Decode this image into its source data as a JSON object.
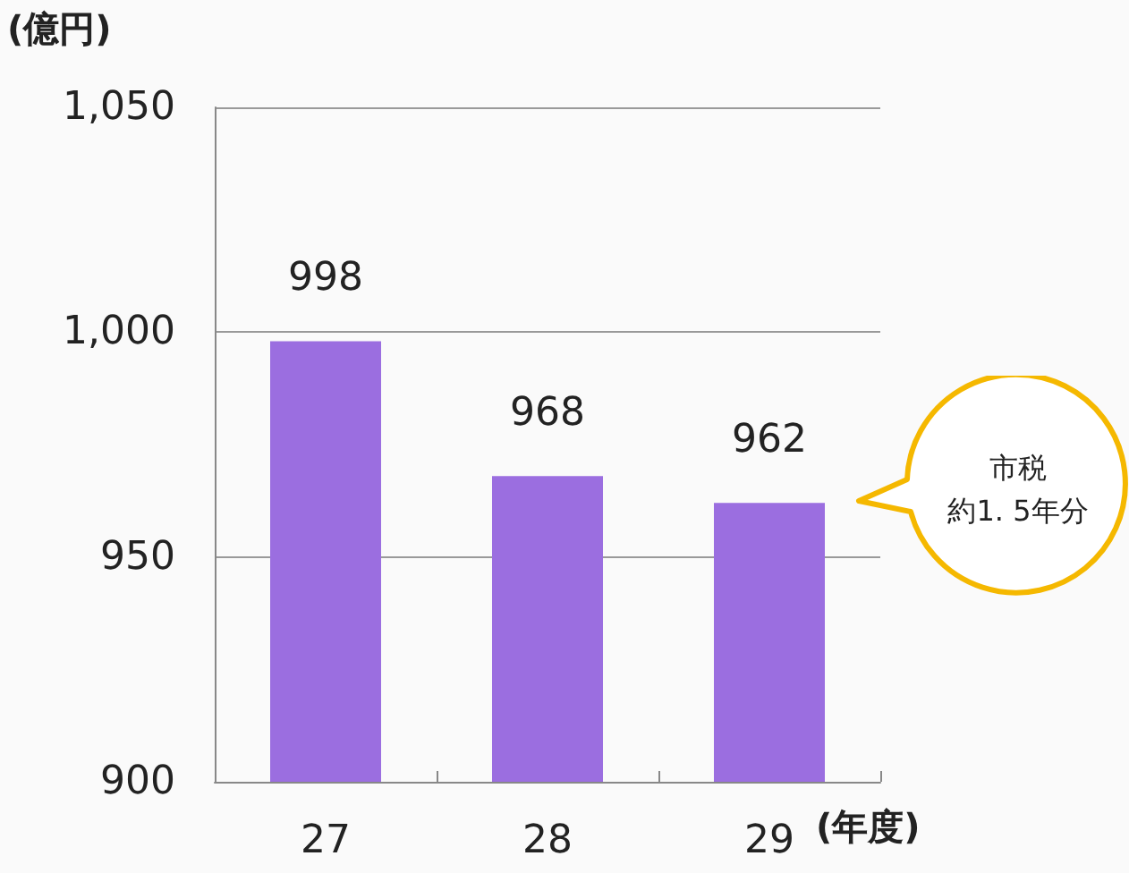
{
  "chart_data": {
    "type": "bar",
    "ylabel": "(億円)",
    "xlabel": "(年度)",
    "categories": [
      "27",
      "28",
      "29"
    ],
    "values": [
      998,
      968,
      962
    ],
    "color": "#9b6ee0",
    "ylim": [
      900,
      1050
    ],
    "yticks": [
      900,
      {
        "value": 950,
        "label": "950"
      },
      {
        "value": 1000,
        "label": "1,000"
      },
      {
        "value": 1050,
        "label": "1,050"
      }
    ],
    "grid": "y",
    "data_labels": true,
    "annotations": [
      "市税",
      "約1. 5年分"
    ]
  }
}
